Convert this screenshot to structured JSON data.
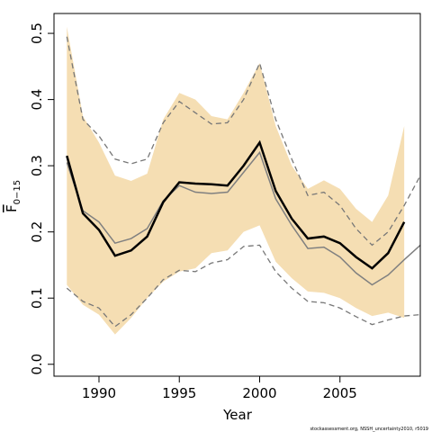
{
  "chart_data": {
    "type": "line",
    "x_label": "Year",
    "y_label": {
      "text": "F",
      "subscript": "0−15"
    },
    "footnote": "stockassessment.org, NSSH_uncertainty2010, r5019",
    "x": [
      1988,
      1989,
      1990,
      1991,
      1992,
      1993,
      1994,
      1995,
      1996,
      1997,
      1998,
      1999,
      2000,
      2001,
      2002,
      2003,
      2004,
      2005,
      2006,
      2007,
      2008,
      2009,
      2010
    ],
    "xlim": [
      1987.2,
      2010.0
    ],
    "xticks": [
      1990,
      1995,
      2000,
      2005
    ],
    "ylim": [
      -0.018,
      0.53
    ],
    "yticks": [
      {
        "value": 0,
        "label": "0.0"
      },
      0.1,
      0.2,
      0.3,
      0.4,
      0.5
    ],
    "band": {
      "color": "#f5deb3",
      "upper": [
        0.51,
        0.375,
        0.335,
        0.285,
        0.277,
        0.288,
        0.37,
        0.41,
        0.4,
        0.375,
        0.37,
        0.41,
        0.455,
        0.36,
        0.3,
        0.265,
        0.278,
        0.265,
        0.235,
        0.215,
        0.255,
        0.36,
        null
      ],
      "lower": [
        0.12,
        0.09,
        0.075,
        0.045,
        0.07,
        0.1,
        0.125,
        0.14,
        0.145,
        0.168,
        0.172,
        0.2,
        0.21,
        0.155,
        0.13,
        0.11,
        0.108,
        0.1,
        0.085,
        0.073,
        0.078,
        0.07,
        null
      ]
    },
    "series": [
      {
        "color": "#777777",
        "dash": true,
        "width": 1.3,
        "values": [
          0.495,
          0.37,
          0.345,
          0.31,
          0.303,
          0.31,
          0.365,
          0.397,
          0.38,
          0.363,
          0.365,
          0.4,
          0.455,
          0.37,
          0.31,
          0.255,
          0.26,
          0.24,
          0.205,
          0.18,
          0.2,
          0.24,
          0.285
        ]
      },
      {
        "color": "#777777",
        "dash": true,
        "width": 1.3,
        "values": [
          0.115,
          0.095,
          0.085,
          0.057,
          0.075,
          0.1,
          0.128,
          0.142,
          0.14,
          0.153,
          0.158,
          0.178,
          0.18,
          0.14,
          0.115,
          0.095,
          0.093,
          0.085,
          0.072,
          0.06,
          0.067,
          0.073,
          0.075
        ]
      },
      {
        "color": "#808080",
        "dash": false,
        "width": 1.5,
        "values": [
          0.305,
          0.232,
          0.215,
          0.183,
          0.19,
          0.205,
          0.247,
          0.27,
          0.26,
          0.258,
          0.26,
          0.29,
          0.32,
          0.25,
          0.21,
          0.175,
          0.177,
          0.162,
          0.138,
          0.12,
          0.135,
          0.158,
          0.18
        ]
      },
      {
        "color": "#000000",
        "dash": false,
        "width": 2.5,
        "values": [
          0.315,
          0.228,
          0.203,
          0.164,
          0.172,
          0.193,
          0.245,
          0.275,
          0.273,
          0.272,
          0.27,
          0.3,
          0.335,
          0.262,
          0.22,
          0.19,
          0.193,
          0.183,
          0.162,
          0.145,
          0.168,
          0.215,
          null
        ]
      }
    ]
  }
}
